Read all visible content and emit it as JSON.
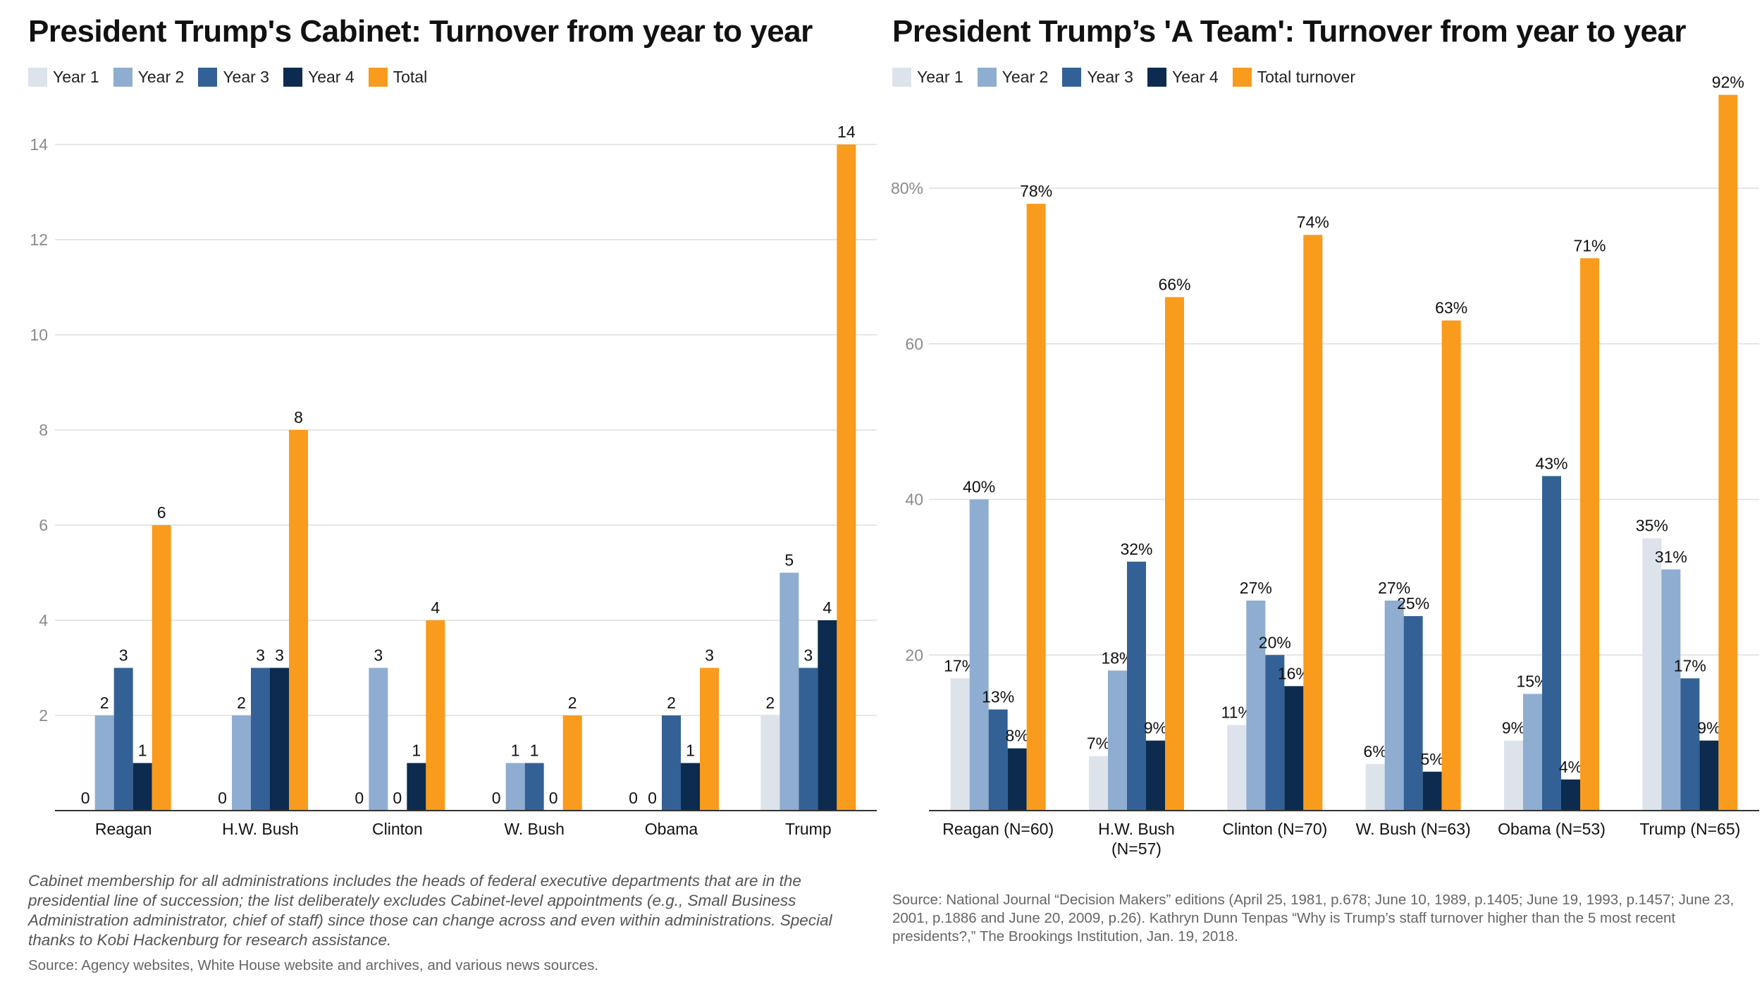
{
  "colors": {
    "year1": "#dde3ea",
    "year2": "#8fadd1",
    "year3": "#336196",
    "year4": "#0c2b4f",
    "total": "#f99b1c"
  },
  "left": {
    "title": "President Trump's Cabinet: Turnover from year to year",
    "legend": [
      "Year 1",
      "Year 2",
      "Year 3",
      "Year 4",
      "Total"
    ],
    "note": "Cabinet membership for all administrations includes the heads of federal executive departments that are in the presidential line of succession; the list deliberately excludes Cabinet-level appointments (e.g., Small Business Administration administrator, chief of staff) since those can change across and even within administrations. Special thanks to Kobi Hackenburg for research assistance.",
    "source": "Source: Agency websites, White House website and archives, and various news sources."
  },
  "right": {
    "title": "President Trump’s 'A Team': Turnover from year to year",
    "legend": [
      "Year 1",
      "Year 2",
      "Year 3",
      "Year 4",
      "Total turnover"
    ],
    "source": "Source: National Journal “Decision Makers” editions (April 25, 1981, p.678; June 10, 1989, p.1405; June 19, 1993, p.1457; June 23, 2001, p.1886 and June 20, 2009, p.26). Kathryn Dunn Tenpas “Why is Trump’s staff turnover higher than the 5 most recent presidents?,” The Brookings Institution, Jan. 19, 2018."
  },
  "chart_data": [
    {
      "type": "bar",
      "title": "President Trump's Cabinet: Turnover from year to year",
      "categories": [
        "Reagan",
        "H.W. Bush",
        "Clinton",
        "W. Bush",
        "Obama",
        "Trump"
      ],
      "series": [
        {
          "name": "Year 1",
          "values": [
            0,
            0,
            0,
            0,
            0,
            2
          ]
        },
        {
          "name": "Year 2",
          "values": [
            2,
            2,
            3,
            1,
            0,
            5
          ]
        },
        {
          "name": "Year 3",
          "values": [
            3,
            3,
            0,
            1,
            2,
            3
          ]
        },
        {
          "name": "Year 4",
          "values": [
            1,
            3,
            1,
            0,
            1,
            4
          ]
        },
        {
          "name": "Total",
          "values": [
            6,
            8,
            4,
            2,
            3,
            14
          ]
        }
      ],
      "y_ticks": [
        "2",
        "4",
        "6",
        "8",
        "10",
        "12",
        "14"
      ],
      "ylim": [
        0,
        14
      ],
      "grid": true,
      "legend_position": "top-left"
    },
    {
      "type": "bar",
      "title": "President Trump’s 'A Team': Turnover from year to year",
      "categories": [
        [
          "Reagan (N=60)"
        ],
        [
          "H.W. Bush",
          "(N=57)"
        ],
        [
          "Clinton (N=70)"
        ],
        [
          "W. Bush (N=63)"
        ],
        [
          "Obama (N=53)"
        ],
        [
          "Trump (N=65)"
        ]
      ],
      "series": [
        {
          "name": "Year 1",
          "values": [
            17,
            7,
            11,
            6,
            9,
            35
          ]
        },
        {
          "name": "Year 2",
          "values": [
            40,
            18,
            27,
            27,
            15,
            31
          ]
        },
        {
          "name": "Year 3",
          "values": [
            13,
            32,
            20,
            25,
            43,
            17
          ]
        },
        {
          "name": "Year 4",
          "values": [
            8,
            9,
            16,
            5,
            4,
            9
          ]
        },
        {
          "name": "Total turnover",
          "values": [
            78,
            66,
            74,
            63,
            71,
            92
          ]
        }
      ],
      "value_suffix": "%",
      "y_ticks": [
        "20",
        "40",
        "60",
        "80%"
      ],
      "ylim": [
        0,
        92
      ],
      "grid": true,
      "legend_position": "top-left"
    }
  ]
}
